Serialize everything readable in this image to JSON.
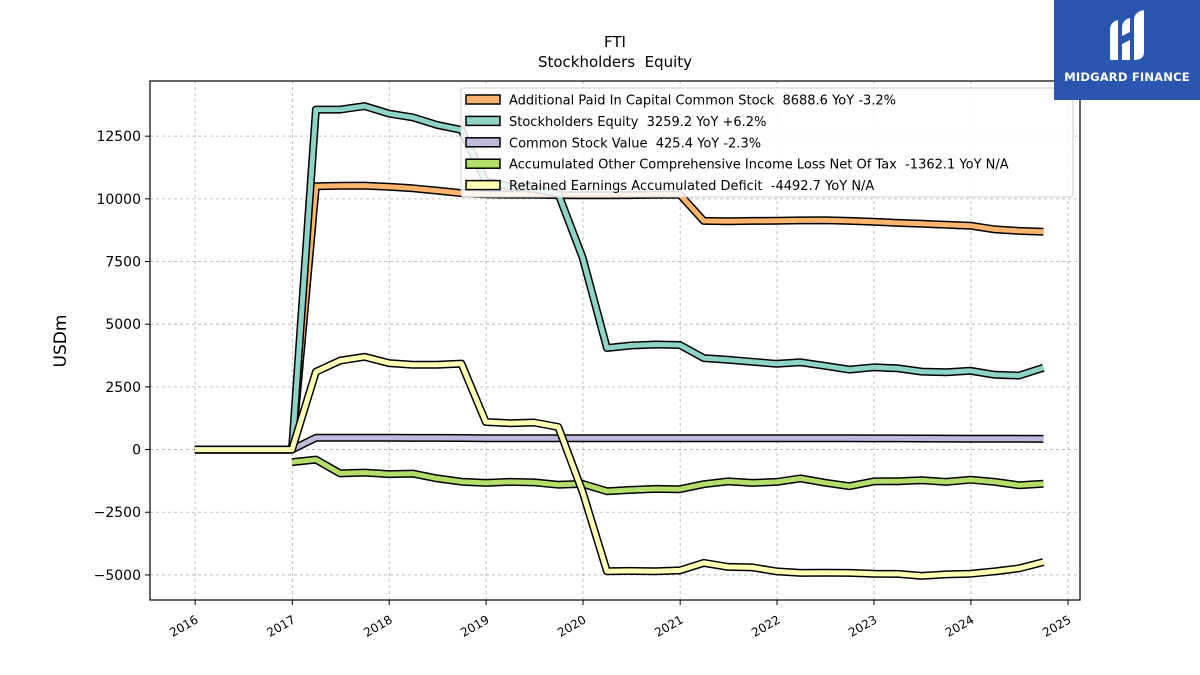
{
  "brand": {
    "name": "MIDGARD FINANCE",
    "logo_icon": "midgard-m-logo-icon",
    "background_color": "#2a56b0"
  },
  "chart_data": {
    "type": "line",
    "title": "FTI",
    "subtitle": "Stockholders  Equity",
    "xlabel": "",
    "ylabel": "USDm",
    "xlim": [
      "2015-07-15",
      "2025-02-15"
    ],
    "ylim": [
      -6000,
      14700
    ],
    "x_ticks": [
      "2016",
      "2017",
      "2018",
      "2019",
      "2020",
      "2021",
      "2022",
      "2023",
      "2024",
      "2025"
    ],
    "y_ticks": [
      -5000,
      -2500,
      0,
      2500,
      5000,
      7500,
      10000,
      12500
    ],
    "y_tick_labels": [
      "−5000",
      "−2500",
      "0",
      "2500",
      "5000",
      "7500",
      "10000",
      "12500"
    ],
    "grid": true,
    "legend_position": "top-right",
    "series": [
      {
        "name": "Additional Paid In Capital Common Stock",
        "legend_label": "Additional Paid In Capital Common Stock  8688.6 YoY -3.2%",
        "color": "#fdb46c",
        "points": [
          [
            "2015-12-31",
            0
          ],
          [
            "2016-12-31",
            0
          ],
          [
            "2017-03-31",
            10500
          ],
          [
            "2017-06-30",
            10520
          ],
          [
            "2017-09-30",
            10530
          ],
          [
            "2017-12-31",
            10480
          ],
          [
            "2018-03-31",
            10420
          ],
          [
            "2018-06-30",
            10330
          ],
          [
            "2018-09-30",
            10230
          ],
          [
            "2018-12-31",
            10180
          ],
          [
            "2019-03-31",
            10170
          ],
          [
            "2019-06-30",
            10170
          ],
          [
            "2019-09-30",
            10150
          ],
          [
            "2019-12-31",
            10140
          ],
          [
            "2020-03-31",
            10140
          ],
          [
            "2020-06-30",
            10150
          ],
          [
            "2020-09-30",
            10160
          ],
          [
            "2020-12-31",
            10170
          ],
          [
            "2021-03-31",
            9120
          ],
          [
            "2021-06-30",
            9110
          ],
          [
            "2021-09-30",
            9120
          ],
          [
            "2021-12-31",
            9130
          ],
          [
            "2022-03-31",
            9140
          ],
          [
            "2022-06-30",
            9150
          ],
          [
            "2022-09-30",
            9120
          ],
          [
            "2022-12-31",
            9090
          ],
          [
            "2023-03-31",
            9040
          ],
          [
            "2023-06-30",
            9010
          ],
          [
            "2023-09-30",
            8970
          ],
          [
            "2023-12-31",
            8930
          ],
          [
            "2024-03-31",
            8780
          ],
          [
            "2024-06-30",
            8720
          ],
          [
            "2024-09-30",
            8690
          ]
        ]
      },
      {
        "name": "Stockholders Equity",
        "legend_label": "Stockholders Equity  3259.2 YoY +6.2%",
        "color": "#8dd3c7",
        "points": [
          [
            "2015-12-31",
            0
          ],
          [
            "2016-12-31",
            0
          ],
          [
            "2017-03-31",
            13560
          ],
          [
            "2017-06-30",
            13560
          ],
          [
            "2017-09-30",
            13700
          ],
          [
            "2017-12-31",
            13400
          ],
          [
            "2018-03-31",
            13250
          ],
          [
            "2018-06-30",
            12950
          ],
          [
            "2018-09-30",
            12750
          ],
          [
            "2018-12-31",
            10700
          ],
          [
            "2019-03-31",
            10500
          ],
          [
            "2019-06-30",
            10400
          ],
          [
            "2019-09-30",
            10200
          ],
          [
            "2019-12-31",
            7650
          ],
          [
            "2020-03-31",
            4050
          ],
          [
            "2020-06-30",
            4150
          ],
          [
            "2020-09-30",
            4190
          ],
          [
            "2020-12-31",
            4170
          ],
          [
            "2021-03-31",
            3650
          ],
          [
            "2021-06-30",
            3580
          ],
          [
            "2021-09-30",
            3500
          ],
          [
            "2021-12-31",
            3420
          ],
          [
            "2022-03-31",
            3480
          ],
          [
            "2022-06-30",
            3340
          ],
          [
            "2022-09-30",
            3190
          ],
          [
            "2022-12-31",
            3280
          ],
          [
            "2023-03-31",
            3240
          ],
          [
            "2023-06-30",
            3110
          ],
          [
            "2023-09-30",
            3080
          ],
          [
            "2023-12-31",
            3140
          ],
          [
            "2024-03-31",
            2980
          ],
          [
            "2024-06-30",
            2950
          ],
          [
            "2024-09-30",
            3260
          ]
        ]
      },
      {
        "name": "Common Stock Value",
        "legend_label": "Common Stock Value  425.4 YoY -2.3%",
        "color": "#bebada",
        "points": [
          [
            "2015-12-31",
            0
          ],
          [
            "2016-12-31",
            0
          ],
          [
            "2017-03-31",
            470
          ],
          [
            "2017-06-30",
            470
          ],
          [
            "2017-09-30",
            470
          ],
          [
            "2017-12-31",
            468
          ],
          [
            "2018-03-31",
            466
          ],
          [
            "2018-06-30",
            464
          ],
          [
            "2018-09-30",
            460
          ],
          [
            "2018-12-31",
            455
          ],
          [
            "2019-03-31",
            453
          ],
          [
            "2019-06-30",
            452
          ],
          [
            "2019-09-30",
            450
          ],
          [
            "2019-12-31",
            448
          ],
          [
            "2020-03-31",
            449
          ],
          [
            "2020-06-30",
            450
          ],
          [
            "2020-09-30",
            450
          ],
          [
            "2020-12-31",
            450
          ],
          [
            "2021-03-31",
            450
          ],
          [
            "2021-06-30",
            450
          ],
          [
            "2021-09-30",
            450
          ],
          [
            "2021-12-31",
            451
          ],
          [
            "2022-03-31",
            451
          ],
          [
            "2022-06-30",
            450
          ],
          [
            "2022-09-30",
            449
          ],
          [
            "2022-12-31",
            447
          ],
          [
            "2023-03-31",
            445
          ],
          [
            "2023-06-30",
            440
          ],
          [
            "2023-09-30",
            437
          ],
          [
            "2023-12-31",
            435
          ],
          [
            "2024-03-31",
            432
          ],
          [
            "2024-06-30",
            428
          ],
          [
            "2024-09-30",
            425
          ]
        ]
      },
      {
        "name": "Accumulated Other Comprehensive Income Loss Net Of Tax",
        "legend_label": "Accumulated Other Comprehensive Income Loss Net Of Tax  -1362.1 YoY N/A",
        "color": "#b3de69",
        "points": [
          [
            "2016-12-31",
            -500
          ],
          [
            "2017-03-31",
            -400
          ],
          [
            "2017-06-30",
            -950
          ],
          [
            "2017-09-30",
            -920
          ],
          [
            "2017-12-31",
            -980
          ],
          [
            "2018-03-31",
            -960
          ],
          [
            "2018-06-30",
            -1150
          ],
          [
            "2018-09-30",
            -1280
          ],
          [
            "2018-12-31",
            -1330
          ],
          [
            "2019-03-31",
            -1290
          ],
          [
            "2019-06-30",
            -1310
          ],
          [
            "2019-09-30",
            -1400
          ],
          [
            "2019-12-31",
            -1370
          ],
          [
            "2020-03-31",
            -1660
          ],
          [
            "2020-06-30",
            -1610
          ],
          [
            "2020-09-30",
            -1570
          ],
          [
            "2020-12-31",
            -1580
          ],
          [
            "2021-03-31",
            -1380
          ],
          [
            "2021-06-30",
            -1270
          ],
          [
            "2021-09-30",
            -1330
          ],
          [
            "2021-12-31",
            -1290
          ],
          [
            "2022-03-31",
            -1150
          ],
          [
            "2022-06-30",
            -1320
          ],
          [
            "2022-09-30",
            -1460
          ],
          [
            "2022-12-31",
            -1270
          ],
          [
            "2023-03-31",
            -1260
          ],
          [
            "2023-06-30",
            -1220
          ],
          [
            "2023-09-30",
            -1290
          ],
          [
            "2023-12-31",
            -1200
          ],
          [
            "2024-03-31",
            -1290
          ],
          [
            "2024-06-30",
            -1420
          ],
          [
            "2024-09-30",
            -1360
          ]
        ]
      },
      {
        "name": "Retained Earnings Accumulated Deficit",
        "legend_label": "Retained Earnings Accumulated Deficit  -4492.7 YoY N/A",
        "color": "#ffffb3",
        "points": [
          [
            "2015-12-31",
            0
          ],
          [
            "2016-12-31",
            0
          ],
          [
            "2017-03-31",
            3100
          ],
          [
            "2017-06-30",
            3550
          ],
          [
            "2017-09-30",
            3700
          ],
          [
            "2017-12-31",
            3450
          ],
          [
            "2018-03-31",
            3380
          ],
          [
            "2018-06-30",
            3380
          ],
          [
            "2018-09-30",
            3430
          ],
          [
            "2018-12-31",
            1100
          ],
          [
            "2019-03-31",
            1050
          ],
          [
            "2019-06-30",
            1080
          ],
          [
            "2019-09-30",
            900
          ],
          [
            "2019-12-31",
            -1700
          ],
          [
            "2020-03-31",
            -4850
          ],
          [
            "2020-06-30",
            -4840
          ],
          [
            "2020-09-30",
            -4850
          ],
          [
            "2020-12-31",
            -4820
          ],
          [
            "2021-03-31",
            -4520
          ],
          [
            "2021-06-30",
            -4680
          ],
          [
            "2021-09-30",
            -4700
          ],
          [
            "2021-12-31",
            -4860
          ],
          [
            "2022-03-31",
            -4920
          ],
          [
            "2022-06-30",
            -4910
          ],
          [
            "2022-09-30",
            -4920
          ],
          [
            "2022-12-31",
            -4950
          ],
          [
            "2023-03-31",
            -4960
          ],
          [
            "2023-06-30",
            -5040
          ],
          [
            "2023-09-30",
            -4980
          ],
          [
            "2023-12-31",
            -4950
          ],
          [
            "2024-03-31",
            -4860
          ],
          [
            "2024-06-30",
            -4740
          ],
          [
            "2024-09-30",
            -4490
          ]
        ]
      }
    ]
  }
}
